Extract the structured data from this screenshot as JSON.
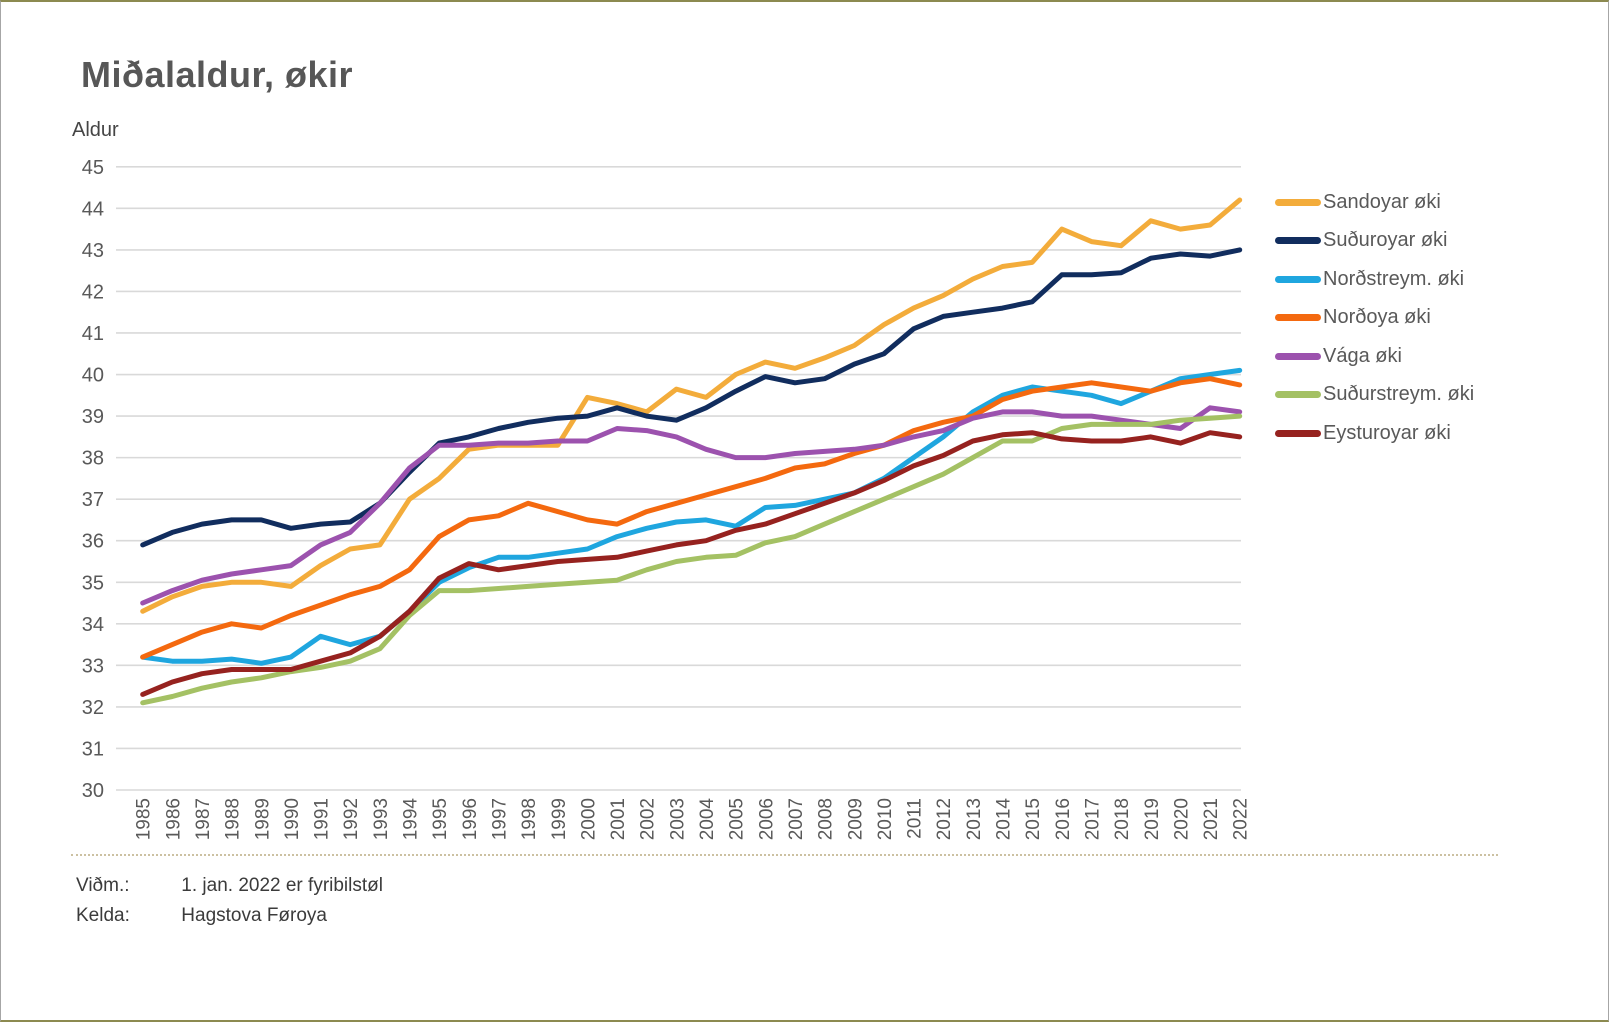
{
  "title": "Miðalaldur, økir",
  "y_axis_label": "Aldur",
  "footer": {
    "note_label": "Viðm.:",
    "note_value": "1. jan. 2022 er fyribilstøl",
    "source_label": "Kelda:",
    "source_value": "Hagstova Føroya"
  },
  "colors": {
    "grid": "#d9d9d9",
    "axis_text": "#595959",
    "title_text": "#575757",
    "frame_side": "#a6a6a6",
    "frame_topbottom": "#8c8a50",
    "footer_divider": "#ccc1a2"
  },
  "chart_data": {
    "type": "line",
    "title": "Miðalaldur, økir",
    "xlabel": "",
    "ylabel": "Aldur",
    "ylim": [
      30,
      45
    ],
    "y_tick_step": 1,
    "grid": "horizontal",
    "legend_position": "right",
    "x_labels_rotated": true,
    "categories": [
      "1985",
      "1986",
      "1987",
      "1988",
      "1989",
      "1990",
      "1991",
      "1992",
      "1993",
      "1994",
      "1995",
      "1996",
      "1997",
      "1998",
      "1999",
      "2000",
      "2001",
      "2002",
      "2003",
      "2004",
      "2005",
      "2006",
      "2007",
      "2008",
      "2009",
      "2010",
      "2011",
      "2012",
      "2013",
      "2014",
      "2015",
      "2016",
      "2017",
      "2018",
      "2019",
      "2020",
      "2021",
      "2022"
    ],
    "series": [
      {
        "name": "Sandoyar øki",
        "color": "#F3AC3B",
        "values": [
          34.3,
          34.65,
          34.9,
          35.0,
          35.0,
          34.9,
          35.4,
          35.8,
          35.9,
          37.0,
          37.5,
          38.2,
          38.3,
          38.3,
          38.3,
          39.45,
          39.3,
          39.1,
          39.65,
          39.45,
          40.0,
          40.3,
          40.15,
          40.4,
          40.7,
          41.2,
          41.6,
          41.9,
          42.3,
          42.6,
          42.7,
          43.5,
          43.2,
          43.1,
          43.7,
          43.5,
          43.6,
          44.2
        ]
      },
      {
        "name": "Suðuroyar øki",
        "color": "#112D5E",
        "values": [
          35.9,
          36.2,
          36.4,
          36.5,
          36.5,
          36.3,
          36.4,
          36.45,
          36.9,
          37.65,
          38.35,
          38.5,
          38.7,
          38.85,
          38.95,
          39.0,
          39.2,
          39.0,
          38.9,
          39.2,
          39.6,
          39.95,
          39.8,
          39.9,
          40.25,
          40.5,
          41.1,
          41.4,
          41.5,
          41.6,
          41.75,
          42.4,
          42.4,
          42.45,
          42.8,
          42.9,
          42.85,
          43.0
        ]
      },
      {
        "name": "Norðstreym. øki",
        "color": "#1FA6DF",
        "values": [
          33.2,
          33.1,
          33.1,
          33.15,
          33.05,
          33.2,
          33.7,
          33.5,
          33.7,
          34.3,
          35.0,
          35.35,
          35.6,
          35.6,
          35.7,
          35.8,
          36.1,
          36.3,
          36.45,
          36.5,
          36.35,
          36.8,
          36.85,
          37.0,
          37.15,
          37.5,
          38.0,
          38.5,
          39.1,
          39.5,
          39.7,
          39.6,
          39.5,
          39.3,
          39.6,
          39.9,
          40.0,
          40.1
        ]
      },
      {
        "name": "Norðoya øki",
        "color": "#F4690F",
        "values": [
          33.2,
          33.5,
          33.8,
          34.0,
          33.9,
          34.2,
          34.45,
          34.7,
          34.9,
          35.3,
          36.1,
          36.5,
          36.6,
          36.9,
          36.7,
          36.5,
          36.4,
          36.7,
          36.9,
          37.1,
          37.3,
          37.5,
          37.75,
          37.85,
          38.1,
          38.3,
          38.65,
          38.85,
          39.0,
          39.4,
          39.6,
          39.7,
          39.8,
          39.7,
          39.6,
          39.8,
          39.9,
          39.75
        ]
      },
      {
        "name": "Vága øki",
        "color": "#9C52AE",
        "values": [
          34.5,
          34.8,
          35.05,
          35.2,
          35.3,
          35.4,
          35.9,
          36.2,
          36.9,
          37.75,
          38.3,
          38.3,
          38.35,
          38.35,
          38.4,
          38.4,
          38.7,
          38.65,
          38.5,
          38.2,
          38.0,
          38.0,
          38.1,
          38.15,
          38.2,
          38.3,
          38.5,
          38.65,
          38.95,
          39.1,
          39.1,
          39.0,
          39.0,
          38.9,
          38.8,
          38.7,
          39.2,
          39.1
        ]
      },
      {
        "name": "Suðurstreym. øki",
        "color": "#A4C164",
        "values": [
          32.1,
          32.25,
          32.45,
          32.6,
          32.7,
          32.85,
          32.95,
          33.1,
          33.4,
          34.2,
          34.8,
          34.8,
          34.85,
          34.9,
          34.95,
          35.0,
          35.05,
          35.3,
          35.5,
          35.6,
          35.65,
          35.95,
          36.1,
          36.4,
          36.7,
          37.0,
          37.3,
          37.6,
          38.0,
          38.4,
          38.4,
          38.7,
          38.8,
          38.8,
          38.8,
          38.9,
          38.95,
          39.0
        ]
      },
      {
        "name": "Eysturoyar øki",
        "color": "#96221F",
        "values": [
          32.3,
          32.6,
          32.8,
          32.9,
          32.9,
          32.9,
          33.1,
          33.3,
          33.7,
          34.3,
          35.1,
          35.45,
          35.3,
          35.4,
          35.5,
          35.55,
          35.6,
          35.75,
          35.9,
          36.0,
          36.25,
          36.4,
          36.65,
          36.9,
          37.15,
          37.45,
          37.8,
          38.05,
          38.4,
          38.55,
          38.6,
          38.45,
          38.4,
          38.4,
          38.5,
          38.35,
          38.6,
          38.5
        ]
      }
    ]
  }
}
